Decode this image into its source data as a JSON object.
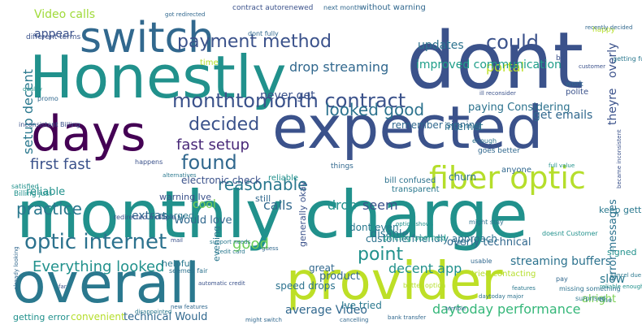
{
  "word_cloud": {
    "background": "#ffffff",
    "words": [
      {
        "text": "dont",
        "color": "#3b528b"
      },
      {
        "text": "Honestly",
        "color": "#21918c"
      },
      {
        "text": "monthly charge",
        "color": "#21918c"
      },
      {
        "text": "expected",
        "color": "#3b528b"
      },
      {
        "text": "provider",
        "color": "#bddf26"
      },
      {
        "text": "overall",
        "color": "#2a788e"
      },
      {
        "text": "days",
        "color": "#440154"
      },
      {
        "text": "switch",
        "color": "#31688e"
      },
      {
        "text": "fiber optic",
        "color": "#b5de2b"
      },
      {
        "text": "monthtomonth contract",
        "color": "#3b528b"
      },
      {
        "text": "optic internet",
        "color": "#2c728e"
      },
      {
        "text": "payment method",
        "color": "#3b528b"
      },
      {
        "text": "Everything looked",
        "color": "#21918c"
      },
      {
        "text": "decided",
        "color": "#3b528b"
      },
      {
        "text": "found",
        "color": "#31688e"
      },
      {
        "text": "could",
        "color": "#3b528b"
      },
      {
        "text": "looked good",
        "color": "#2c728e"
      },
      {
        "text": "reasonable",
        "color": "#2a788e"
      },
      {
        "text": "practice",
        "color": "#2a788e"
      },
      {
        "text": "point",
        "color": "#21918c"
      },
      {
        "text": "first fast",
        "color": "#3b528b"
      },
      {
        "text": "fast setup",
        "color": "#482878"
      },
      {
        "text": "decent app",
        "color": "#21918c"
      },
      {
        "text": "drop streaming",
        "color": "#31688e"
      },
      {
        "text": "portal",
        "color": "#bddf26"
      },
      {
        "text": "good",
        "color": "#6ece58"
      },
      {
        "text": "daytoday performance",
        "color": "#35b779"
      },
      {
        "text": "average Video",
        "color": "#31688e"
      },
      {
        "text": "setup decent",
        "color": "#2a788e"
      },
      {
        "text": "calls",
        "color": "#31688e"
      },
      {
        "text": "drop",
        "color": "#21918c"
      },
      {
        "text": "seem",
        "color": "#3b528b"
      },
      {
        "text": "Video calls",
        "color": "#a0da39"
      },
      {
        "text": "updates",
        "color": "#2c728e"
      },
      {
        "text": "improved communication",
        "color": "#1f9e89"
      },
      {
        "text": "never get",
        "color": "#3b528b"
      },
      {
        "text": "get emails",
        "color": "#31688e"
      },
      {
        "text": "paying Considering",
        "color": "#2c728e"
      },
      {
        "text": "streaming buffers",
        "color": "#2c728e"
      },
      {
        "text": "slow",
        "color": "#2a788e"
      },
      {
        "text": "alright",
        "color": "#7ad151"
      },
      {
        "text": "theyre",
        "color": "#3b528b"
      },
      {
        "text": "overly",
        "color": "#3b528b"
      },
      {
        "text": "error messages",
        "color": "#2c728e"
      },
      {
        "text": "overly technical",
        "color": "#31688e"
      },
      {
        "text": "customerfriendly approach",
        "color": "#2c728e"
      },
      {
        "text": "disable",
        "color": "#2c728e"
      },
      {
        "text": "product",
        "color": "#31688e"
      },
      {
        "text": "Would love",
        "color": "#31688e"
      },
      {
        "text": "cool",
        "color": "#7ad151"
      },
      {
        "text": "extras",
        "color": "#31688e"
      },
      {
        "text": "appear",
        "color": "#3b528b"
      },
      {
        "text": "reliable",
        "color": "#21918c"
      },
      {
        "text": "electronic check",
        "color": "#3b528b"
      },
      {
        "text": "technical Would",
        "color": "#31688e"
      },
      {
        "text": "getting error",
        "color": "#21918c"
      },
      {
        "text": "convenient",
        "color": "#b5de2b"
      },
      {
        "text": "Ive tried",
        "color": "#2a788e"
      },
      {
        "text": "speed drops",
        "color": "#2c728e"
      },
      {
        "text": "remember signing",
        "color": "#31688e"
      },
      {
        "text": "internet",
        "color": "#2c728e"
      },
      {
        "text": "dont even",
        "color": "#2a788e"
      },
      {
        "text": "great",
        "color": "#31688e"
      },
      {
        "text": "pricing seemed",
        "color": "#1f9e89"
      },
      {
        "text": "bill confused",
        "color": "#2c728e"
      },
      {
        "text": "transparent",
        "color": "#2a788e"
      },
      {
        "text": "churn",
        "color": "#2c728e"
      },
      {
        "text": "anyone",
        "color": "#31688e"
      },
      {
        "text": "still",
        "color": "#31688e"
      },
      {
        "text": "warning Ive",
        "color": "#3b528b"
      },
      {
        "text": "charged",
        "color": "#2a788e"
      },
      {
        "text": "helpful",
        "color": "#2a788e"
      },
      {
        "text": "evening",
        "color": "#2a788e"
      },
      {
        "text": "keep getting",
        "color": "#2a788e"
      },
      {
        "text": "signed",
        "color": "#21918c"
      },
      {
        "text": "different terms",
        "color": "#3b528b"
      },
      {
        "text": "reliable",
        "color": "#21918c"
      },
      {
        "text": "contract autorenewed",
        "color": "#3b528b"
      },
      {
        "text": "next month",
        "color": "#31688e"
      },
      {
        "text": "without warning",
        "color": "#31688e"
      },
      {
        "text": "got redirected",
        "color": "#31688e"
      },
      {
        "text": "bit",
        "color": "#3b528b"
      },
      {
        "text": "happy",
        "color": "#b5de2b"
      },
      {
        "text": "time",
        "color": "#b5de2b"
      },
      {
        "text": "dont fully",
        "color": "#31688e"
      },
      {
        "text": "goes better",
        "color": "#31688e"
      },
      {
        "text": "enough",
        "color": "#2c728e"
      },
      {
        "text": "things",
        "color": "#31688e"
      },
      {
        "text": "Billing just",
        "color": "#21918c"
      },
      {
        "text": "satisfied",
        "color": "#21918c"
      },
      {
        "text": "happens",
        "color": "#3b528b"
      },
      {
        "text": "redirected multiple",
        "color": "#3b528b"
      },
      {
        "text": "inconsistent Billing",
        "color": "#3b528b"
      },
      {
        "text": "promo",
        "color": "#31688e"
      },
      {
        "text": "quality",
        "color": "#21918c"
      },
      {
        "text": "might stay",
        "color": "#2c728e"
      },
      {
        "text": "usable",
        "color": "#31688e"
      },
      {
        "text": "cancelling",
        "color": "#31688e"
      },
      {
        "text": "might switch",
        "color": "#31688e"
      },
      {
        "text": "generally okay",
        "color": "#3b528b"
      },
      {
        "text": "missing something",
        "color": "#2c728e"
      },
      {
        "text": "alternatives",
        "color": "#2a788e"
      },
      {
        "text": "already looking",
        "color": "#31688e"
      },
      {
        "text": "seemed fair",
        "color": "#2c728e"
      },
      {
        "text": "disappointed",
        "color": "#2a788e"
      },
      {
        "text": "surprised",
        "color": "#2a788e"
      },
      {
        "text": "reliable enough",
        "color": "#21918c"
      },
      {
        "text": "tried contacting",
        "color": "#b5de2b"
      },
      {
        "text": "became inconsistent",
        "color": "#3b528b"
      },
      {
        "text": "customer",
        "color": "#3b528b"
      },
      {
        "text": "doesnt Customer",
        "color": "#21918c"
      },
      {
        "text": "full value",
        "color": "#21918c"
      },
      {
        "text": "polite",
        "color": "#3b528b"
      },
      {
        "text": "work",
        "color": "#31688e"
      },
      {
        "text": "getting full",
        "color": "#2a788e"
      },
      {
        "text": "recently decided",
        "color": "#31688e"
      },
      {
        "text": "ill reconsider",
        "color": "#3b528b"
      },
      {
        "text": "bank transfer",
        "color": "#31688e"
      },
      {
        "text": "credit card",
        "color": "#2a788e"
      },
      {
        "text": "cancel due",
        "color": "#2a788e"
      },
      {
        "text": "new features",
        "color": "#31688e"
      },
      {
        "text": "option shows",
        "color": "#21918c"
      },
      {
        "text": "automatic credit",
        "color": "#3b528b"
      },
      {
        "text": "daytoday major",
        "color": "#2c728e"
      },
      {
        "text": "fine",
        "color": "#2a788e"
      },
      {
        "text": "support needs",
        "color": "#2a788e"
      },
      {
        "text": "mail",
        "color": "#3b528b"
      },
      {
        "text": "guess",
        "color": "#31688e"
      },
      {
        "text": "far",
        "color": "#3b528b"
      },
      {
        "text": "pay",
        "color": "#31688e"
      },
      {
        "text": "features",
        "color": "#2a788e"
      },
      {
        "text": "better option",
        "color": "#b5de2b"
      },
      {
        "text": "terrible",
        "color": "#31688e"
      }
    ]
  }
}
